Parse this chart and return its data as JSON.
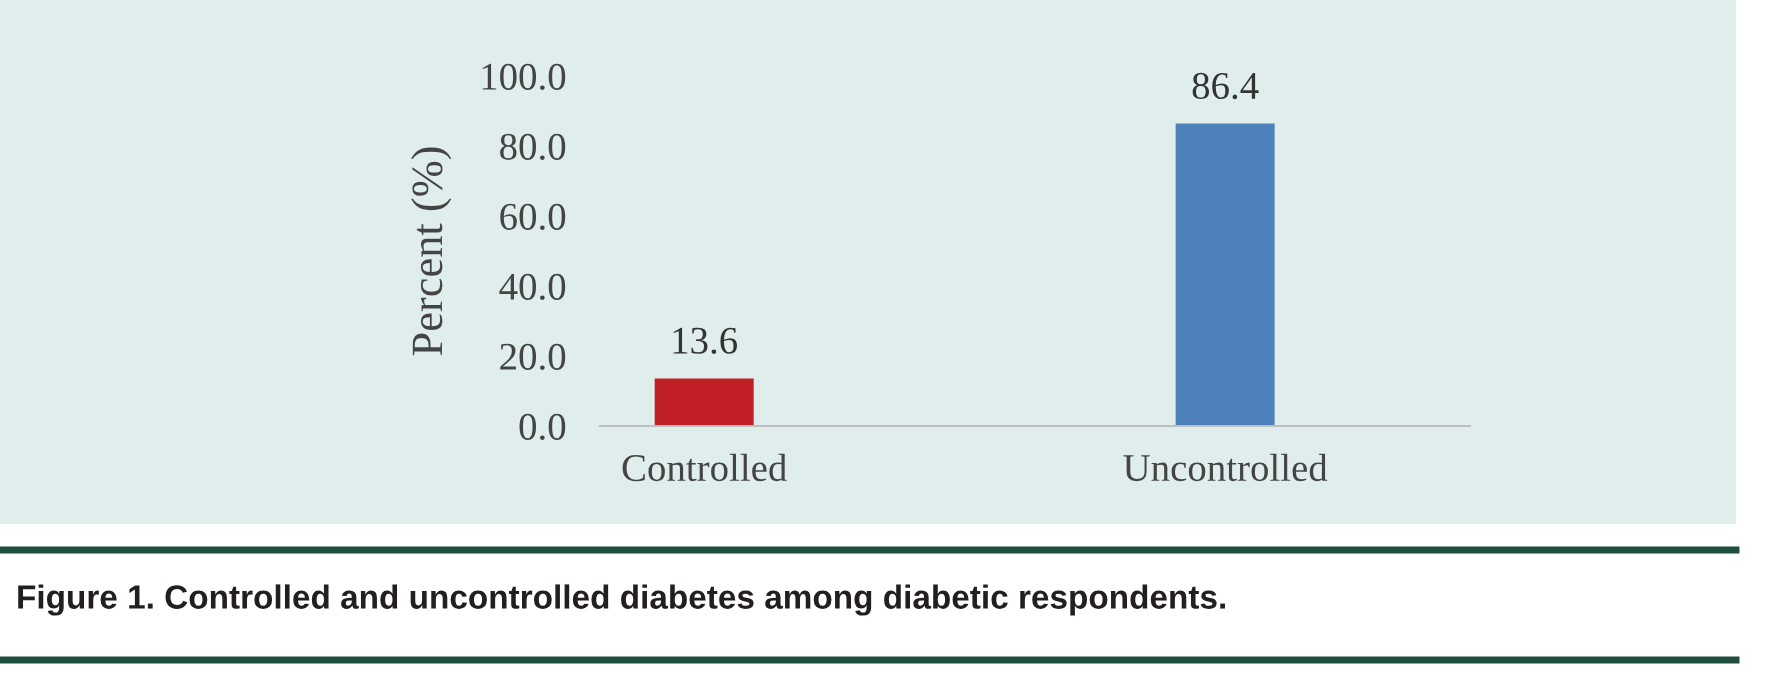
{
  "chart_data": {
    "type": "bar",
    "ylabel": "Percent (%)",
    "categories": [
      "Controlled",
      "Uncontrolled"
    ],
    "values": [
      13.6,
      86.4
    ],
    "colors": [
      "#c01f26",
      "#4f81bd"
    ],
    "ylim": [
      0,
      100
    ],
    "yticks": [
      {
        "value": 0,
        "label": "0.0"
      },
      {
        "value": 20,
        "label": "20.0"
      },
      {
        "value": 40,
        "label": "40.0"
      },
      {
        "value": 60,
        "label": "60.0"
      },
      {
        "value": 80,
        "label": "80.0"
      },
      {
        "value": 100,
        "label": "100.0"
      }
    ],
    "data_labels": true,
    "grid": false,
    "legend": false,
    "annotations": [
      "Figure 1. Controlled and uncontrolled diabetes among diabetic respondents."
    ]
  }
}
